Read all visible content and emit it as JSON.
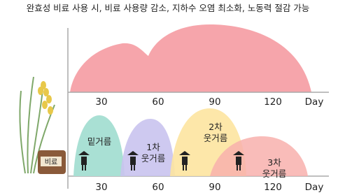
{
  "title": "완효성 비료 사용 시, 비료 사용량 감소, 지하수 오염 최소화, 노동력 절감 가능",
  "top_axis": {
    "ticks": [
      "30",
      "60",
      "90",
      "120"
    ],
    "unit": "Day"
  },
  "bottom_axis": {
    "ticks": [
      "30",
      "60",
      "90",
      "120"
    ],
    "unit": "Day"
  },
  "stages": [
    {
      "lines": [
        "밑거름"
      ]
    },
    {
      "lines": [
        "1차",
        "웃거름"
      ]
    },
    {
      "lines": [
        "2차",
        "웃거름"
      ]
    },
    {
      "lines": [
        "3차",
        "웃거름"
      ]
    }
  ],
  "bag_label": "비료"
}
